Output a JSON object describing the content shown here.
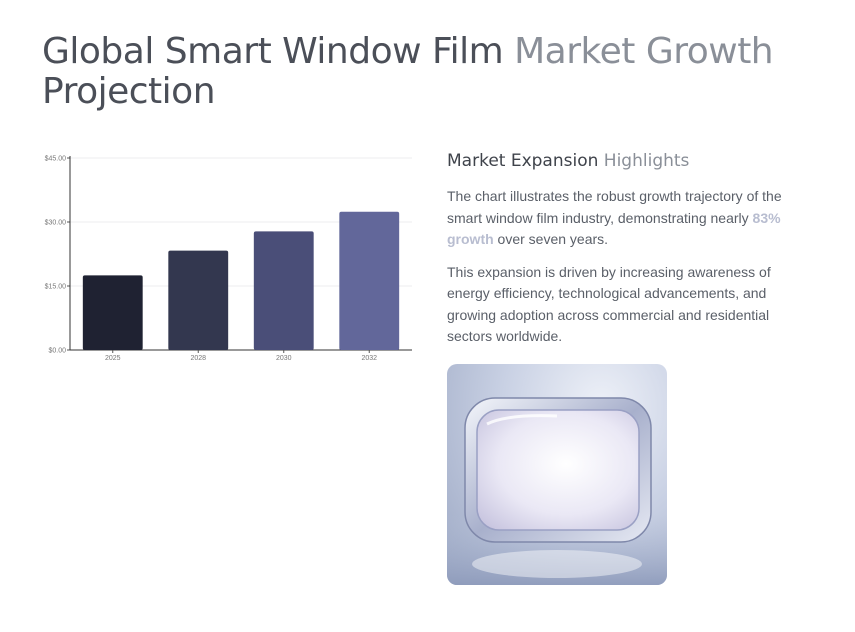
{
  "page": {
    "title_main": "Global Smart Window Film",
    "title_accent": "Market Growth",
    "title_tail": "Projection"
  },
  "highlights": {
    "heading_main": "Market Expansion",
    "heading_accent": "Highlights",
    "para1_before": "The chart illustrates the robust growth trajectory of the smart window film industry, demonstrating nearly ",
    "para1_emph": "83% growth",
    "para1_after": " over seven years.",
    "para2": "This expansion is driven by increasing awareness of energy efficiency, technological advancements, and growing adoption across commercial and residential sectors worldwide."
  },
  "hero_image": {
    "icon": "window-film-panel-icon"
  },
  "chart_data": {
    "type": "bar",
    "categories": [
      "2025",
      "2028",
      "2030",
      "2032"
    ],
    "values": [
      17.5,
      23.3,
      27.8,
      32.4
    ],
    "ylim": [
      0,
      45
    ],
    "yticks": [
      0,
      15,
      30,
      45
    ],
    "ytick_labels": [
      "$0.00",
      "$15.00",
      "$30.00",
      "$45.00"
    ],
    "colors": [
      "#1f2232",
      "#33374f",
      "#4a4e78",
      "#62679a"
    ],
    "grid": true,
    "title": "",
    "xlabel": "",
    "ylabel": ""
  }
}
